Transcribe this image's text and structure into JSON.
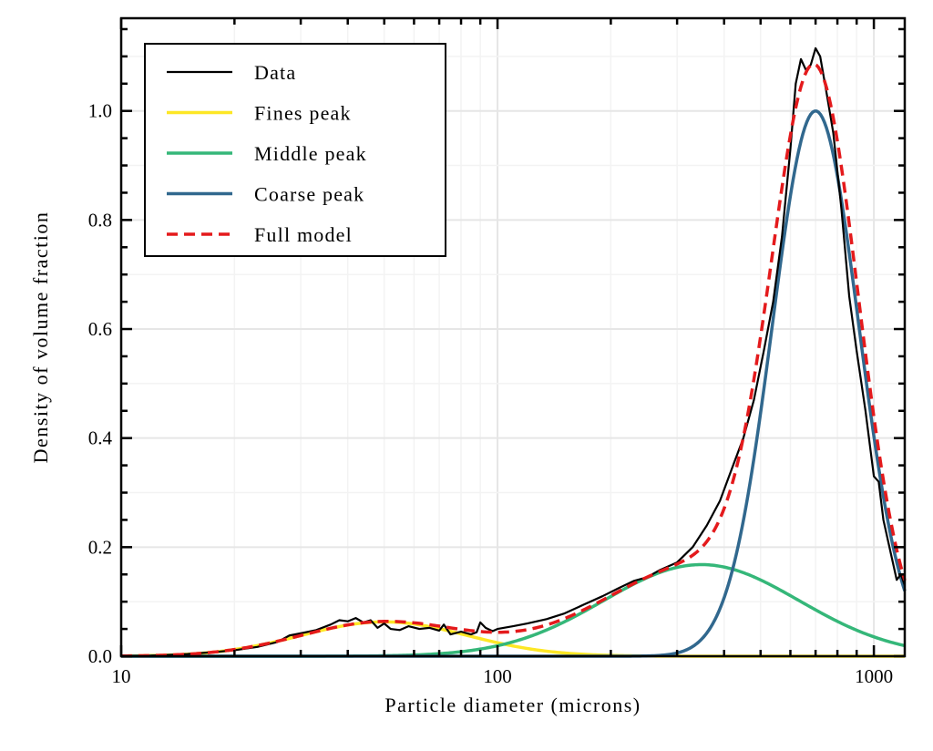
{
  "chart_data": {
    "type": "line",
    "title": "",
    "xlabel": "Particle diameter (microns)",
    "ylabel": "Density of volume fraction",
    "xscale": "log",
    "xlim": [
      10,
      1208
    ],
    "ylim": [
      0,
      1.17
    ],
    "xticks": [
      10,
      100,
      1000
    ],
    "xtick_labels": [
      "10",
      "100",
      "1000"
    ],
    "yticks": [
      0,
      0.2,
      0.4,
      0.6,
      0.8,
      1.0
    ],
    "ytick_labels": [
      "0.0",
      "0.2",
      "0.4",
      "0.6",
      "0.8",
      "1.0"
    ],
    "grid": true,
    "legend_placement": "top-left",
    "series": [
      {
        "name": "Data",
        "color": "#000000",
        "style": "solid",
        "x": [
          10,
          12,
          15,
          18,
          20,
          23,
          26,
          28,
          30,
          33,
          36,
          38,
          40,
          42,
          44,
          46,
          48,
          50,
          52,
          55,
          58,
          62,
          66,
          70,
          72,
          75,
          80,
          85,
          88,
          90,
          93,
          97,
          100,
          110,
          120,
          135,
          150,
          170,
          190,
          210,
          230,
          250,
          270,
          300,
          330,
          360,
          390,
          420,
          450,
          480,
          510,
          540,
          570,
          600,
          620,
          640,
          660,
          680,
          700,
          720,
          750,
          780,
          820,
          860,
          900,
          950,
          1000,
          1030,
          1060,
          1100,
          1150,
          1180,
          1208
        ],
        "y": [
          0.0,
          0.001,
          0.004,
          0.008,
          0.011,
          0.017,
          0.026,
          0.038,
          0.042,
          0.048,
          0.058,
          0.066,
          0.064,
          0.07,
          0.062,
          0.066,
          0.052,
          0.06,
          0.05,
          0.048,
          0.055,
          0.05,
          0.052,
          0.047,
          0.058,
          0.04,
          0.045,
          0.04,
          0.044,
          0.062,
          0.052,
          0.046,
          0.05,
          0.055,
          0.06,
          0.068,
          0.078,
          0.095,
          0.11,
          0.125,
          0.138,
          0.145,
          0.158,
          0.172,
          0.2,
          0.24,
          0.285,
          0.345,
          0.4,
          0.47,
          0.56,
          0.65,
          0.77,
          0.93,
          1.05,
          1.095,
          1.075,
          1.085,
          1.115,
          1.1,
          1.03,
          0.96,
          0.82,
          0.66,
          0.56,
          0.45,
          0.33,
          0.32,
          0.25,
          0.2,
          0.14,
          0.15,
          0.13
        ]
      },
      {
        "name": "Fines peak",
        "color": "#fde725",
        "style": "solid",
        "model": "lognormal",
        "mode": 50,
        "height": 0.063,
        "sigma_log10": 0.22
      },
      {
        "name": "Middle peak",
        "color": "#35b779",
        "style": "solid",
        "model": "lognormal",
        "mode": 348,
        "height": 0.168,
        "sigma_log10": 0.26
      },
      {
        "name": "Coarse peak",
        "color": "#31688e",
        "style": "solid",
        "model": "lognormal",
        "mode": 700,
        "height": 1.0,
        "sigma_log10": 0.115
      },
      {
        "name": "Full model",
        "color": "#e41a1c",
        "style": "dashed",
        "model": "sum"
      }
    ]
  }
}
